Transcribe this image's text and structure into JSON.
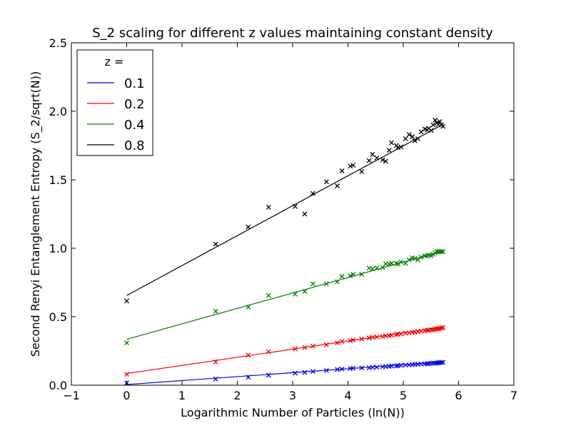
{
  "chart_data": {
    "type": "scatter",
    "title": "S_2 scaling for different z values maintaining constant density",
    "xlabel": "Logarithmic Number of Particles (ln(N))",
    "ylabel": "Second Renyi Entanglement Entropy (S_2/sqrt(N))",
    "xlim": [
      -1,
      7
    ],
    "ylim": [
      0,
      2.5
    ],
    "xticks": [
      -1,
      0,
      1,
      2,
      3,
      4,
      5,
      6,
      7
    ],
    "xtick_labels": [
      "−1",
      "0",
      "1",
      "2",
      "3",
      "4",
      "5",
      "6",
      "7"
    ],
    "yticks": [
      0,
      0.5,
      1,
      1.5,
      2,
      2.5
    ],
    "ytick_labels": [
      "0.0",
      "0.5",
      "1.0",
      "1.5",
      "2.0",
      "2.5"
    ],
    "grid": false,
    "legend": {
      "title": "z =",
      "placement": "top-left"
    },
    "x": [
      0.0,
      1.609,
      2.197,
      2.565,
      3.045,
      3.219,
      3.367,
      3.611,
      3.807,
      3.892,
      4.043,
      4.094,
      4.248,
      4.382,
      4.443,
      4.522,
      4.625,
      4.682,
      4.745,
      4.787,
      4.875,
      4.905,
      4.96,
      5.04,
      5.106,
      5.165,
      5.209,
      5.263,
      5.323,
      5.389,
      5.429,
      5.46,
      5.505,
      5.541,
      5.576,
      5.606,
      5.634,
      5.659,
      5.69,
      5.717
    ],
    "series": [
      {
        "name": "0.1",
        "color": "#0000ff",
        "fit": {
          "x": [
            0.0,
            5.72
          ],
          "y": [
            0.005,
            0.17
          ]
        },
        "y": [
          0.017,
          0.045,
          0.058,
          0.073,
          0.088,
          0.093,
          0.1,
          0.107,
          0.115,
          0.118,
          0.122,
          0.124,
          0.126,
          0.127,
          0.13,
          0.131,
          0.135,
          0.136,
          0.138,
          0.14,
          0.141,
          0.143,
          0.145,
          0.147,
          0.148,
          0.15,
          0.152,
          0.153,
          0.155,
          0.156,
          0.157,
          0.158,
          0.16,
          0.161,
          0.161,
          0.162,
          0.164,
          0.165,
          0.166,
          0.167
        ]
      },
      {
        "name": "0.2",
        "color": "#ff0000",
        "fit": {
          "x": [
            0.0,
            5.72
          ],
          "y": [
            0.085,
            0.425
          ]
        },
        "y": [
          0.08,
          0.17,
          0.22,
          0.245,
          0.265,
          0.275,
          0.285,
          0.295,
          0.31,
          0.32,
          0.325,
          0.33,
          0.338,
          0.345,
          0.35,
          0.352,
          0.355,
          0.36,
          0.362,
          0.365,
          0.37,
          0.372,
          0.375,
          0.38,
          0.382,
          0.385,
          0.388,
          0.39,
          0.395,
          0.398,
          0.4,
          0.402,
          0.405,
          0.405,
          0.41,
          0.41,
          0.412,
          0.415,
          0.418,
          0.42
        ]
      },
      {
        "name": "0.4",
        "color": "#008000",
        "fit": {
          "x": [
            0.0,
            5.72
          ],
          "y": [
            0.335,
            0.98
          ]
        },
        "y": [
          0.31,
          0.54,
          0.57,
          0.655,
          0.665,
          0.685,
          0.74,
          0.74,
          0.755,
          0.795,
          0.8,
          0.81,
          0.81,
          0.855,
          0.85,
          0.855,
          0.86,
          0.885,
          0.885,
          0.89,
          0.89,
          0.885,
          0.9,
          0.89,
          0.915,
          0.93,
          0.925,
          0.915,
          0.935,
          0.945,
          0.945,
          0.95,
          0.945,
          0.955,
          0.965,
          0.975,
          0.975,
          0.975,
          0.975,
          0.975
        ]
      },
      {
        "name": "0.8",
        "color": "#000000",
        "fit": {
          "x": [
            0.0,
            5.72
          ],
          "y": [
            0.655,
            1.905
          ]
        },
        "y": [
          0.615,
          1.03,
          1.155,
          1.3,
          1.305,
          1.25,
          1.4,
          1.485,
          1.455,
          1.565,
          1.6,
          1.605,
          1.56,
          1.64,
          1.685,
          1.66,
          1.645,
          1.635,
          1.715,
          1.77,
          1.75,
          1.735,
          1.74,
          1.8,
          1.83,
          1.815,
          1.785,
          1.8,
          1.85,
          1.87,
          1.865,
          1.875,
          1.86,
          1.9,
          1.935,
          1.915,
          1.905,
          1.925,
          1.9,
          1.89
        ]
      }
    ]
  }
}
